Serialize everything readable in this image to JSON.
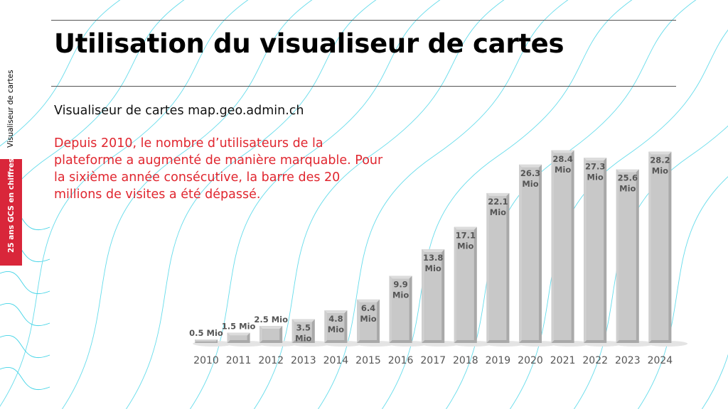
{
  "slide": {
    "title": "Utilisation du visualiseur de cartes",
    "subtitle": "Visualiseur de cartes map.geo.admin.ch",
    "description": "Depuis 2010, le nombre d’utilisateurs de la plateforme a augmenté de manière marquable. Pour la sixième année consécutive, la barre des 20 millions de visites a été dépassé.",
    "side_label": "Visualiseur de cartes",
    "side_tab": "25 ans GCS  en chiffres",
    "accent_color": "#d9263a",
    "text_accent_color": "#e0262f"
  },
  "chart_data": {
    "type": "bar",
    "categories": [
      "2010",
      "2011",
      "2012",
      "2013",
      "2014",
      "2015",
      "2016",
      "2017",
      "2018",
      "2019",
      "2020",
      "2021",
      "2022",
      "2023",
      "2024"
    ],
    "values": [
      0.5,
      1.5,
      2.5,
      3.5,
      4.8,
      6.4,
      9.9,
      13.8,
      17.1,
      22.1,
      26.3,
      28.4,
      27.3,
      25.6,
      28.2
    ],
    "unit": "Mio",
    "bar_color": "#c8c8c8",
    "grid": false,
    "legend": "none"
  }
}
